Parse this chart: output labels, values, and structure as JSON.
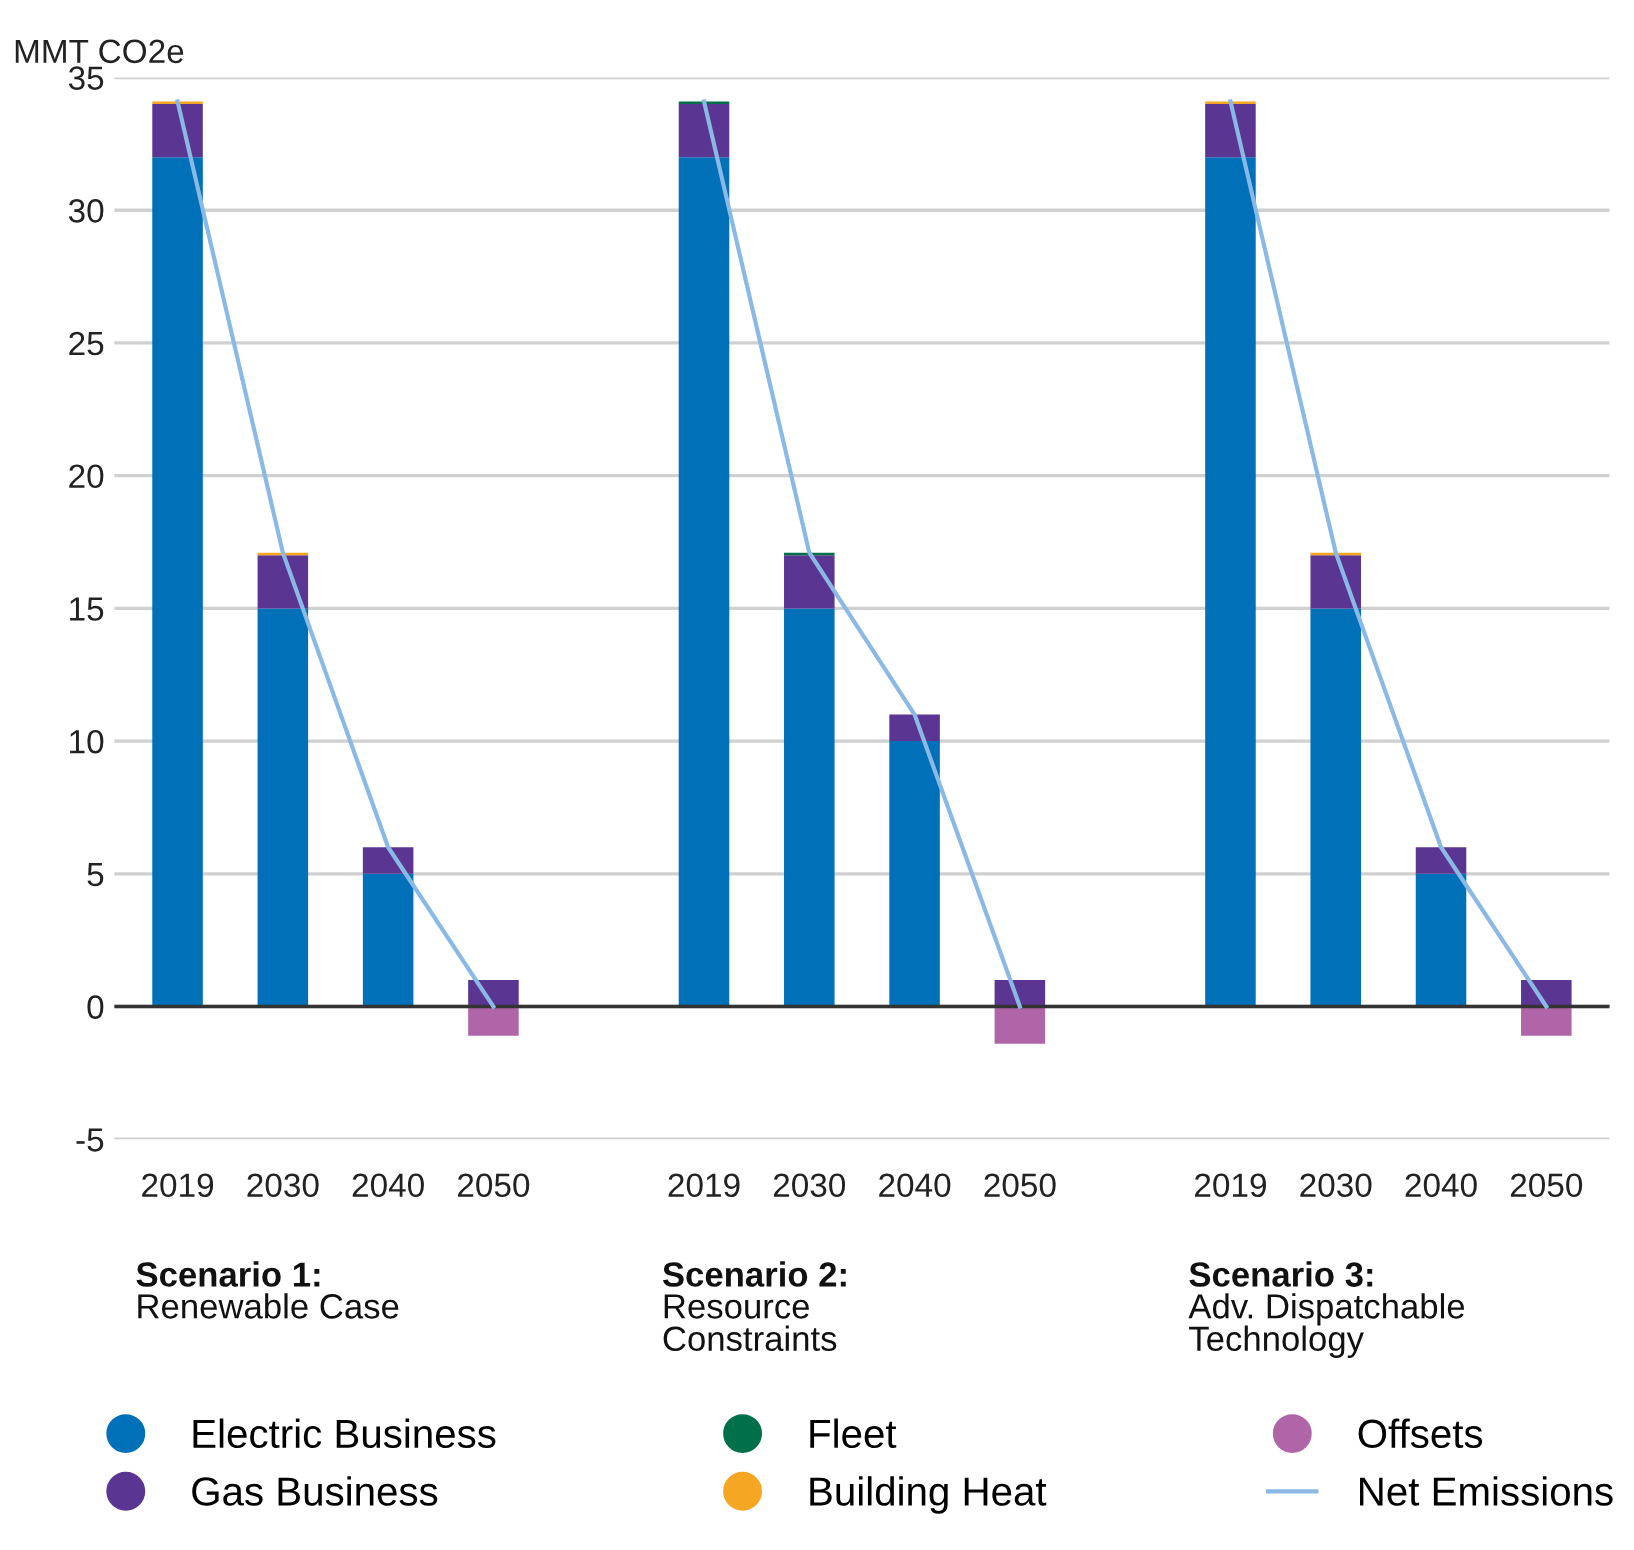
{
  "chart_data": {
    "type": "bar",
    "stacked": true,
    "ylabel": "MMT CO2e",
    "categories": [
      "2019",
      "2030",
      "2040",
      "2050",
      null,
      "2019",
      "2030",
      "2040",
      "2050",
      null,
      "2019",
      "2030",
      "2040",
      "2050"
    ],
    "series": [
      {
        "name": "Electric Business",
        "color": "#0070b8",
        "values": [
          32,
          15,
          5,
          0,
          null,
          32,
          15,
          10,
          0,
          null,
          32,
          15,
          5,
          0
        ]
      },
      {
        "name": "Gas Business",
        "color": "#5b3592",
        "values": [
          2,
          2,
          1,
          1,
          null,
          2,
          2,
          1,
          1,
          null,
          2,
          2,
          1,
          1
        ]
      },
      {
        "name": "Fleet",
        "color": "#00704a",
        "values": [
          0,
          0,
          0,
          0,
          null,
          0.1,
          0.1,
          0,
          0,
          null,
          0,
          0,
          0,
          0
        ]
      },
      {
        "name": "Building Heat",
        "color": "#f5a623",
        "values": [
          0.1,
          0.1,
          0,
          0,
          null,
          0,
          0,
          0,
          0,
          null,
          0.1,
          0.1,
          0,
          0
        ]
      },
      {
        "name": "Offsets",
        "color": "#b065a8",
        "values": [
          0,
          0,
          0,
          -1.1,
          null,
          0,
          0,
          0,
          -1.4,
          null,
          0,
          0,
          0,
          -1.1
        ]
      },
      {
        "name": "Net Emissions",
        "type": "line",
        "color": "#8ab9e6",
        "values": [
          34.1,
          17.1,
          6,
          0,
          null,
          34.1,
          17.1,
          11,
          0,
          null,
          34.1,
          17.1,
          6,
          0
        ]
      }
    ],
    "ylim": [
      -5,
      35
    ],
    "yticks": [
      -5,
      0,
      5,
      10,
      15,
      20,
      25,
      30,
      35
    ],
    "grid": "y",
    "legend": "bottom",
    "annotations": [
      "Scenario 1:",
      "Renewable Case",
      "Scenario 2:",
      "Resource\nConstraints",
      "Scenario 3:",
      "Adv. Dispatchable\nTechnology"
    ]
  }
}
